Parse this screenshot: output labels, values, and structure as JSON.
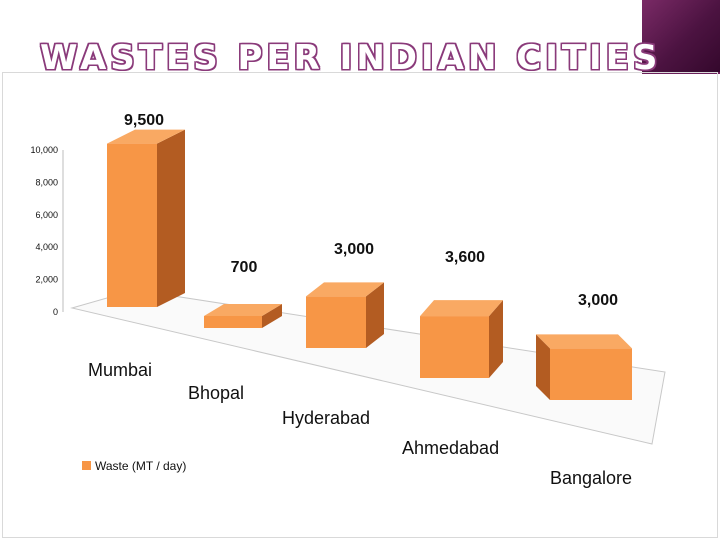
{
  "slide_title": "WASTES PER INDIAN CITIES",
  "colors": {
    "bar_front": "#f79646",
    "bar_top": "#f9a963",
    "bar_side": "#b35c22",
    "accent": "#5a1650"
  },
  "chart_data": {
    "type": "bar",
    "categories": [
      "Mumbai",
      "Bhopal",
      "Hyderabad",
      "Ahmedabad",
      "Bangalore"
    ],
    "series": [
      {
        "name": "Waste (MT / day)",
        "values": [
          9500,
          700,
          3000,
          3600,
          3000
        ]
      }
    ],
    "data_labels": [
      "9,500",
      "700",
      "3,000",
      "3,600",
      "3,000"
    ],
    "y_ticks": [
      "0",
      "2,000",
      "4,000",
      "6,000",
      "8,000",
      "10,000"
    ],
    "ylim": [
      0,
      10000
    ],
    "legend": "bottom-left",
    "grid": false,
    "style": "3d"
  }
}
